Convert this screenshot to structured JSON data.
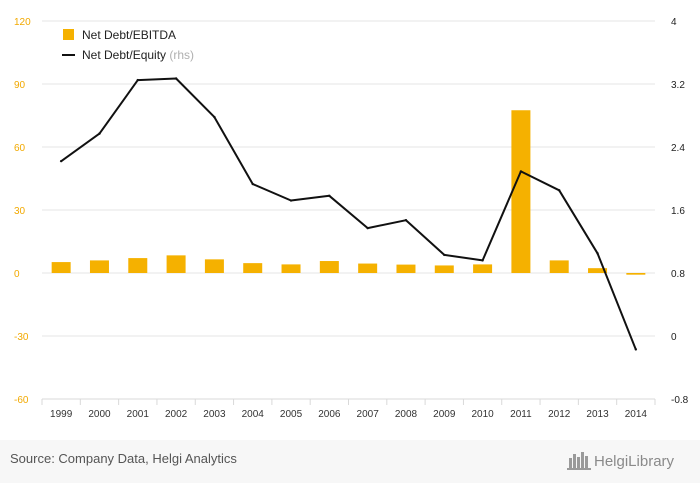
{
  "chart_data": {
    "type": "bar",
    "categories": [
      "1999",
      "2000",
      "2001",
      "2002",
      "2003",
      "2004",
      "2005",
      "2006",
      "2007",
      "2008",
      "2009",
      "2010",
      "2011",
      "2012",
      "2013",
      "2014"
    ],
    "series": [
      {
        "name": "Net Debt/EBITDA",
        "kind": "bar",
        "axis": "left",
        "color": "#f5b100",
        "values": [
          5.2,
          6.0,
          7.1,
          8.4,
          6.5,
          4.7,
          4.1,
          5.7,
          4.5,
          4.0,
          3.6,
          4.1,
          77.5,
          6.0,
          2.3,
          -0.8
        ]
      },
      {
        "name": "Net Debt/Equity",
        "kind": "line",
        "axis": "right",
        "color": "#111111",
        "values": [
          2.22,
          2.57,
          3.25,
          3.27,
          2.78,
          1.93,
          1.72,
          1.78,
          1.37,
          1.47,
          1.03,
          0.96,
          2.09,
          1.85,
          1.05,
          -0.17
        ]
      }
    ],
    "y_left": {
      "min": -60,
      "max": 120,
      "ticks": [
        "120",
        "90",
        "60",
        "30",
        "0",
        "-30",
        "-60"
      ],
      "tick_color": "#f2a900"
    },
    "y_right": {
      "min": -0.8,
      "max": 4,
      "ticks": [
        "4",
        "3.2",
        "2.4",
        "1.6",
        "0.8",
        "0",
        "-0.8"
      ],
      "tick_color": "#222222"
    },
    "grid": true,
    "legend": {
      "position": "top-left",
      "items": [
        {
          "label": "Net Debt/EBITDA",
          "suffix": ""
        },
        {
          "label": "Net Debt/Equity",
          "suffix": " (rhs)"
        }
      ]
    }
  },
  "footer": {
    "source": "Source: Company Data, Helgi Analytics",
    "logo": "HelgiLibrary"
  },
  "colors": {
    "bar": "#f5b100",
    "line": "#111111",
    "grid": "#e6e6e6",
    "footer_bg": "#f7f7f7"
  }
}
